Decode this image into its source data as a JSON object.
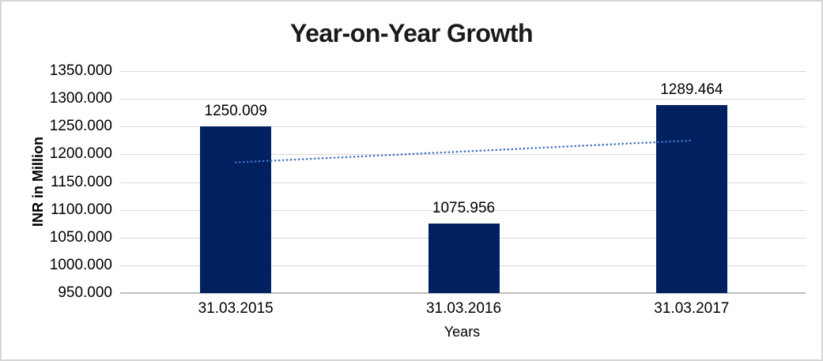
{
  "chart_data": {
    "type": "bar",
    "title": "Year-on-Year Growth",
    "xlabel": "Years",
    "ylabel": "INR in Million",
    "categories": [
      "31.03.2015",
      "31.03.2016",
      "31.03.2017"
    ],
    "values": [
      1250.009,
      1075.956,
      1289.464
    ],
    "value_labels": [
      "1250.009",
      "1075.956",
      "1289.464"
    ],
    "y_tick_labels": [
      "1350.000",
      "1300.000",
      "1250.000",
      "1200.000",
      "1150.000",
      "1100.000",
      "1050.000",
      "1000.000",
      "950.000"
    ],
    "y_tick_values": [
      1350,
      1300,
      1250,
      1200,
      1150,
      1100,
      1050,
      1000,
      950
    ],
    "ylim": [
      950,
      1350
    ],
    "grid": true,
    "legend": false,
    "trendline": {
      "type": "linear",
      "style": "dotted",
      "start_value": 1185.4,
      "end_value": 1224.9
    },
    "colors": {
      "bar": "#002060",
      "trendline": "#4472c4",
      "gridline": "#d9d9d9",
      "axis_line": "#bfbfbf",
      "text": "#000000",
      "title_text": "#1a1a1a",
      "canvas_border": "#d6d6d6",
      "background": "#ffffff"
    }
  }
}
